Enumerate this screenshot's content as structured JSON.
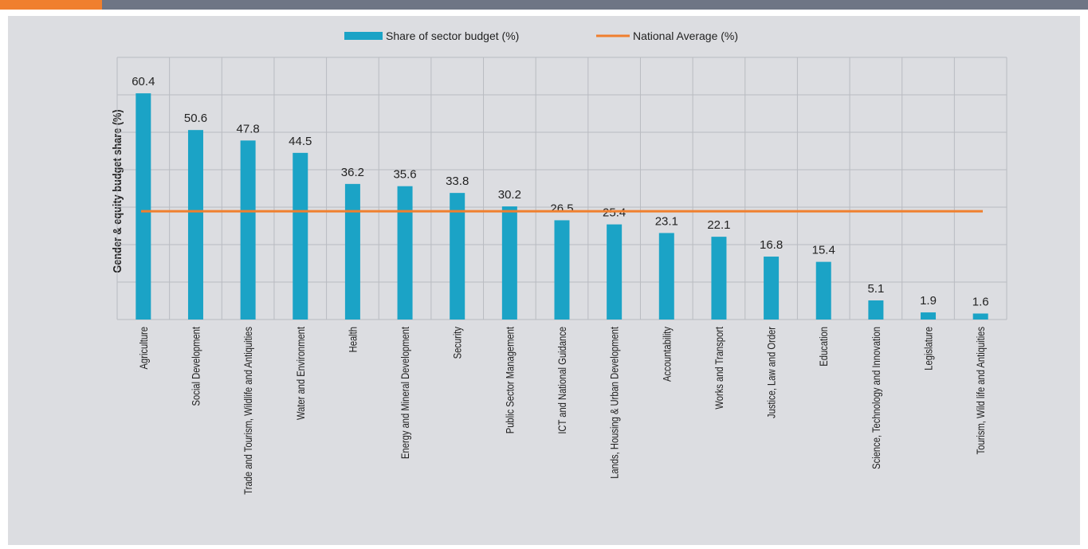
{
  "chart_data": {
    "type": "bar",
    "y_label": "Gender & equity budget share (%)",
    "categories": [
      "Agriculture",
      "Social Development",
      "Trade and Tourism, Wildlife and Antiquities",
      "Water and Environment",
      "Health",
      "Energy and Mineral Development",
      "Security",
      "Public Sector Management",
      "ICT and National Guidance",
      "Lands, Housing & Urban Development",
      "Accountability",
      "Works and Transport",
      "Justice, Law and Order",
      "Education",
      "Science, Technology and Innovation",
      "Legislature",
      "Tourism, Wild life and Antiquities"
    ],
    "series": [
      {
        "name": "Share of sector budget (%)",
        "color": "#1ba3c6",
        "values": [
          60.4,
          50.6,
          47.8,
          44.5,
          36.2,
          35.6,
          33.8,
          30.2,
          26.5,
          25.4,
          23.1,
          22.1,
          16.8,
          15.4,
          5.1,
          1.9,
          1.6
        ]
      },
      {
        "name": "National Average (%)",
        "type": "line",
        "color": "#f07f2e",
        "value": 28.9
      }
    ],
    "ylim": [
      0,
      70
    ],
    "yticks": [
      0,
      10,
      20,
      30,
      40,
      50,
      60,
      70
    ],
    "grid": true
  }
}
